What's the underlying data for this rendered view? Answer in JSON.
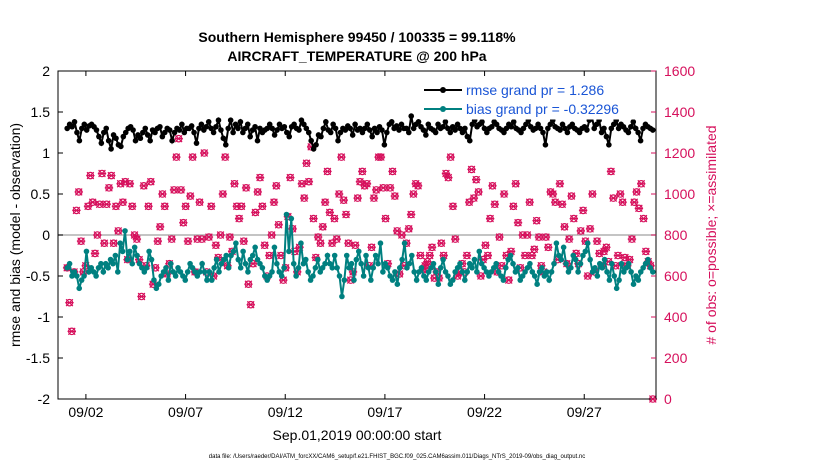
{
  "chart_data": {
    "type": "line",
    "title": "Southern Hemisphere 99450 / 100335 = 99.118%",
    "subtitle": "AIRCRAFT_TEMPERATURE @ 200 hPa",
    "xlabel": "Sep.01,2019 00:00:00 start",
    "ylabel_left": "rmse and bias (model - observation)",
    "ylabel_right": "# of obs: o=possible; ×=assimilated",
    "footer": "data file: /Users/raeder/DAI/ATM_forcXX/CAM6_setup/f.e21.FHIST_BGC.f09_025.CAM6assim.011/Diags_NTrS_2019-09/obs_diag_output.nc",
    "xlim": [
      0.6,
      30.6
    ],
    "ylim_left": [
      -2,
      2
    ],
    "ylim_right": [
      0,
      1600
    ],
    "x_ticks": [
      "09/02",
      "09/07",
      "09/12",
      "09/17",
      "09/22",
      "09/27"
    ],
    "y_ticks_left": [
      "-2",
      "-1.5",
      "-1",
      "-0.5",
      "0",
      "0.5",
      "1",
      "1.5",
      "2"
    ],
    "y_ticks_right": [
      "0",
      "200",
      "400",
      "600",
      "800",
      "1000",
      "1200",
      "1400",
      "1600"
    ],
    "legend": [
      {
        "label": "rmse grand pr = 1.286",
        "color": "#000000"
      },
      {
        "label": "bias grand pr = -0.32296",
        "color": "#008080"
      }
    ],
    "colors": {
      "rmse": "#000000",
      "bias": "#008080",
      "obs": "#d6105c",
      "text_blue": "#1a55d6",
      "zero_line": "#b0b0b0"
    },
    "series": [
      {
        "name": "rmse",
        "axis": "left",
        "values": [
          1.3,
          1.35,
          1.32,
          1.38,
          1.25,
          1.15,
          1.3,
          1.35,
          1.28,
          1.33,
          1.35,
          1.32,
          1.28,
          1.2,
          1.12,
          1.25,
          1.3,
          1.15,
          1.05,
          1.22,
          1.18,
          1.1,
          1.08,
          1.2,
          1.25,
          1.3,
          1.32,
          1.28,
          1.15,
          1.22,
          1.18,
          1.25,
          1.3,
          1.22,
          1.15,
          1.28,
          1.25,
          1.3,
          1.32,
          1.2,
          1.25,
          1.3,
          1.28,
          1.15,
          1.25,
          1.3,
          1.28,
          1.35,
          1.25,
          1.3,
          1.3,
          1.33,
          1.25,
          1.12,
          1.3,
          1.35,
          1.28,
          1.32,
          1.38,
          1.3,
          1.25,
          1.32,
          1.4,
          1.28,
          1.18,
          1.1,
          1.3,
          1.4,
          1.25,
          1.35,
          1.3,
          1.38,
          1.25,
          1.3,
          1.35,
          1.2,
          1.28,
          1.32,
          1.15,
          1.3,
          1.25,
          1.28,
          1.3,
          1.35,
          1.3,
          1.22,
          1.28,
          1.35,
          1.3,
          1.32,
          1.25,
          1.2,
          1.32,
          1.35,
          1.3,
          1.28,
          1.4,
          1.35,
          1.3,
          1.25,
          1.15,
          1.05,
          1.1,
          1.22,
          1.2,
          1.3,
          1.38,
          1.28,
          1.25,
          1.35,
          1.3,
          1.15,
          1.25,
          1.3,
          1.28,
          1.33,
          1.3,
          1.22,
          1.35,
          1.28,
          1.3,
          1.25,
          1.3,
          1.35,
          1.28,
          1.2,
          1.3,
          1.25,
          1.32,
          1.28,
          1.1,
          1.25,
          1.35,
          1.38,
          1.3,
          1.33,
          1.28,
          1.35,
          1.3,
          1.3,
          1.25,
          1.45,
          1.3,
          1.35,
          1.38,
          1.32,
          1.28,
          1.22,
          1.35,
          1.3,
          1.28,
          1.25,
          1.35,
          1.3,
          1.32,
          1.38,
          1.3,
          1.25,
          1.32,
          1.28,
          1.35,
          1.3,
          1.25,
          1.3,
          1.2,
          1.15,
          1.35,
          1.4,
          1.32,
          1.35,
          1.38,
          1.3,
          1.25,
          1.3,
          1.32,
          1.38,
          1.35,
          1.3,
          1.28,
          1.25,
          1.3,
          1.35,
          1.32,
          1.38,
          1.3,
          1.28,
          1.25,
          1.3,
          1.35,
          1.4,
          1.32,
          1.28,
          1.3,
          1.35,
          1.3,
          1.25,
          1.1,
          1.3,
          1.35,
          1.4,
          1.32,
          1.3,
          1.28,
          1.35,
          1.3,
          1.25,
          1.32,
          1.35,
          1.3,
          1.28,
          1.25,
          1.3,
          1.32,
          1.28,
          1.4,
          1.45,
          1.3,
          1.35,
          1.4,
          1.25,
          1.3,
          1.2,
          1.1,
          1.3,
          1.35,
          1.4,
          1.3,
          1.35,
          1.32,
          1.28,
          1.25,
          1.32,
          1.38,
          1.3,
          1.25,
          1.15,
          1.3,
          1.35,
          1.32,
          1.3,
          1.28
        ]
      },
      {
        "name": "bias",
        "axis": "left",
        "values": [
          -0.4,
          -0.35,
          -0.5,
          -0.45,
          -0.5,
          -0.65,
          -0.55,
          -0.5,
          -0.2,
          -0.45,
          -0.4,
          -0.45,
          -0.5,
          -0.4,
          -0.35,
          -0.45,
          -0.35,
          -0.4,
          -0.3,
          -0.35,
          -0.25,
          -0.45,
          -0.1,
          -0.2,
          0.05,
          -0.3,
          -0.2,
          -0.35,
          -0.15,
          -0.25,
          -0.35,
          -0.4,
          -0.45,
          -0.4,
          -0.2,
          -0.3,
          -0.55,
          -0.65,
          -0.6,
          -0.5,
          -0.45,
          -0.4,
          -0.55,
          -0.35,
          -0.45,
          -0.5,
          -0.4,
          -0.45,
          -0.5,
          -0.55,
          -0.45,
          -0.35,
          -0.4,
          -0.45,
          -0.5,
          -0.45,
          -0.35,
          -0.45,
          -0.55,
          -0.45,
          -0.55,
          -0.4,
          -0.3,
          -0.45,
          -0.35,
          -0.3,
          -0.25,
          -0.4,
          -0.25,
          -0.2,
          -0.1,
          -0.3,
          -0.4,
          -0.2,
          -0.35,
          -0.45,
          -0.3,
          -0.25,
          -0.15,
          -0.3,
          -0.35,
          -0.4,
          -0.5,
          -0.55,
          -0.5,
          -0.45,
          -0.15,
          -0.35,
          -0.45,
          -0.5,
          -0.4,
          0.25,
          -0.2,
          0.2,
          -0.35,
          -0.5,
          -0.4,
          -0.1,
          -0.35,
          -0.3,
          -0.45,
          -0.55,
          -0.5,
          -0.4,
          -0.3,
          -0.45,
          -0.4,
          -0.35,
          -0.25,
          -0.35,
          -0.4,
          -0.25,
          -0.4,
          -0.5,
          -0.75,
          -0.55,
          -0.25,
          -0.4,
          -0.35,
          -0.55,
          -0.3,
          -0.2,
          -0.35,
          -0.5,
          -0.25,
          -0.4,
          -0.55,
          -0.4,
          -0.25,
          -0.35,
          -0.1,
          -0.45,
          -0.35,
          -0.4,
          -0.5,
          -0.55,
          -0.45,
          -0.6,
          -0.4,
          -0.3,
          -0.1,
          -0.4,
          -0.35,
          -0.25,
          -0.45,
          -0.55,
          -0.45,
          -0.4,
          -0.5,
          -0.55,
          -0.45,
          -0.4,
          -0.35,
          -0.45,
          -0.6,
          -0.4,
          -0.3,
          -0.45,
          -0.5,
          -0.6,
          -0.55,
          -0.45,
          -0.4,
          -0.35,
          -0.45,
          -0.55,
          -0.45,
          -0.35,
          -0.4,
          -0.3,
          -0.45,
          -0.2,
          -0.35,
          -0.4,
          -0.45,
          -0.5,
          -0.45,
          -0.4,
          -0.35,
          -0.45,
          -0.5,
          -0.55,
          -0.4,
          -0.3,
          -0.25,
          -0.35,
          -0.45,
          -0.4,
          -0.55,
          -0.5,
          -0.45,
          -0.4,
          -0.35,
          -0.45,
          -0.5,
          -0.6,
          -0.45,
          -0.4,
          -0.5,
          -0.45,
          -0.55,
          -0.45,
          -0.35,
          -0.1,
          -0.25,
          -0.3,
          -0.15,
          -0.35,
          -0.45,
          -0.4,
          -0.25,
          -0.3,
          -0.45,
          -0.35,
          -0.25,
          -0.2,
          -0.1,
          -0.3,
          -0.45,
          -0.4,
          -0.5,
          -0.35,
          -0.4,
          -0.3,
          -0.45,
          -0.55,
          -0.35,
          -0.5,
          -0.65,
          -0.55,
          -0.35,
          -0.45,
          -0.4,
          -0.35,
          -0.45,
          -0.6,
          -0.5,
          -0.55,
          -0.45,
          -0.4,
          -0.35,
          -0.3,
          -0.4,
          -0.45
        ]
      },
      {
        "name": "obs",
        "axis": "right",
        "values": [
          640,
          470,
          330,
          620,
          920,
          1010,
          770,
          620,
          650,
          940,
          1090,
          960,
          710,
          800,
          950,
          1100,
          760,
          950,
          1030,
          1090,
          760,
          940,
          820,
          1050,
          960,
          1060,
          680,
          1050,
          940,
          800,
          780,
          680,
          500,
          1040,
          650,
          940,
          1060,
          560,
          640,
          770,
          840,
          1000,
          940,
          610,
          660,
          780,
          1020,
          1180,
          1270,
          1020,
          860,
          940,
          770,
          990,
          1180,
          620,
          780,
          960,
          780,
          1200,
          620,
          790,
          940,
          600,
          750,
          690,
          800,
          1000,
          1180,
          650,
          790,
          720,
          1050,
          940,
          880,
          940,
          770,
          1030,
          560,
          460,
          660,
          910,
          1010,
          1080,
          940,
          750,
          600,
          700,
          800,
          960,
          1040,
          850,
          700,
          580,
          640,
          890,
          1080,
          830,
          720,
          620,
          740,
          1050,
          980,
          1150,
          1060,
          1230,
          880,
          690,
          790,
          760,
          840,
          960,
          1110,
          910,
          760,
          880,
          780,
          1000,
          1180,
          970,
          900,
          760,
          580,
          620,
          750,
          980,
          1060,
          1110,
          1040,
          1050,
          650,
          740,
          980,
          1020,
          1180,
          1180,
          1030,
          880,
          660,
          1030,
          1110,
          990,
          820,
          610,
          800,
          650,
          760,
          830,
          900,
          1000,
          1050,
          1040,
          700,
          630,
          650,
          670,
          700,
          740,
          590,
          620,
          590,
          760,
          700,
          1100,
          1080,
          1180,
          940,
          780,
          600,
          620,
          660,
          620,
          700,
          960,
          1120,
          980,
          1070,
          1010,
          600,
          680,
          750,
          700,
          880,
          1040,
          950,
          620,
          790,
          650,
          1000,
          700,
          580,
          720,
          940,
          1050,
          860,
          640,
          800,
          700,
          800,
          960,
          700,
          730,
          870,
          790,
          650,
          620,
          790,
          740,
          1010,
          1000,
          960,
          680,
          1050,
          950,
          840,
          660,
          780,
          990,
          880,
          710,
          660,
          820,
          920,
          770,
          600,
          830,
          1000,
          620,
          770,
          710,
          650,
          720,
          740,
          670,
          1110,
          980,
          650,
          700,
          1000,
          960,
          690,
          650,
          680,
          780,
          960,
          1010,
          930,
          1050,
          880,
          720,
          670,
          650,
          0
        ]
      }
    ]
  }
}
